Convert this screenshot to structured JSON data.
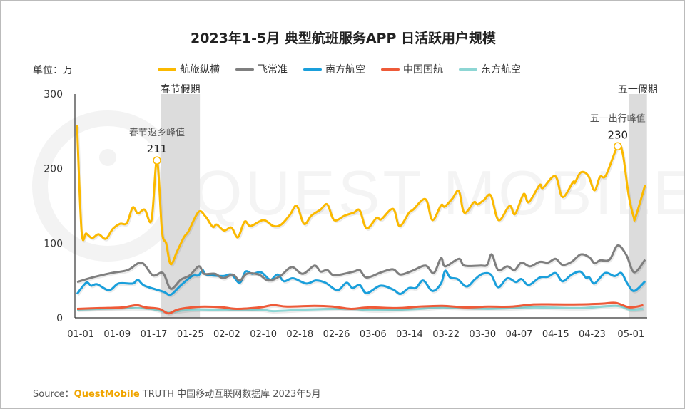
{
  "chart_data": {
    "type": "line",
    "title": "2023年1-5月 典型航班服务APP 日活跃用户规模",
    "unit_label": "单位：万",
    "ylim": [
      0,
      300
    ],
    "yticks": [
      0,
      100,
      200,
      300
    ],
    "xlim_days": [
      0,
      124.5
    ],
    "xticks": [
      {
        "label": "01-01",
        "day": 0.8
      },
      {
        "label": "01-09",
        "day": 8.8
      },
      {
        "label": "01-17",
        "day": 16.8
      },
      {
        "label": "01-25",
        "day": 24.8
      },
      {
        "label": "02-02",
        "day": 32.8
      },
      {
        "label": "02-10",
        "day": 40.8
      },
      {
        "label": "02-18",
        "day": 48.8
      },
      {
        "label": "02-26",
        "day": 56.8
      },
      {
        "label": "03-06",
        "day": 64.8
      },
      {
        "label": "03-14",
        "day": 72.8
      },
      {
        "label": "03-22",
        "day": 80.8
      },
      {
        "label": "03-30",
        "day": 88.8
      },
      {
        "label": "04-07",
        "day": 96.8
      },
      {
        "label": "04-15",
        "day": 104.8
      },
      {
        "label": "04-23",
        "day": 112.8
      },
      {
        "label": "05-01",
        "day": 121.3
      }
    ],
    "shaded": [
      {
        "label": "春节假期",
        "from": 18.3,
        "to": 26.9
      },
      {
        "label": "五一假期",
        "from": 120.8,
        "to": 124.8
      }
    ],
    "annotations": [
      {
        "series": 0,
        "day": 17.5,
        "value": 211,
        "text": "春节返乡峰值",
        "value_label": "211"
      },
      {
        "series": 0,
        "day": 118.4,
        "value": 230,
        "text": "五一出行峰值",
        "value_label": "230"
      }
    ],
    "series": [
      {
        "name": "航旅纵横",
        "color": "#fbb900",
        "points": [
          [
            0,
            258
          ],
          [
            1,
            115
          ],
          [
            2,
            113
          ],
          [
            3.3,
            107
          ],
          [
            4.7,
            112
          ],
          [
            6.3,
            106
          ],
          [
            7.8,
            119
          ],
          [
            9.4,
            126
          ],
          [
            10.9,
            127
          ],
          [
            12.2,
            148
          ],
          [
            13.3,
            140
          ],
          [
            14.8,
            145
          ],
          [
            16.3,
            131
          ],
          [
            17.5,
            211
          ],
          [
            18.6,
            116
          ],
          [
            19.5,
            100
          ],
          [
            20.5,
            72
          ],
          [
            21.9,
            89
          ],
          [
            23.4,
            108
          ],
          [
            24.4,
            116
          ],
          [
            26.6,
            142
          ],
          [
            28.1,
            136
          ],
          [
            29.7,
            122
          ],
          [
            30.6,
            125
          ],
          [
            32.2,
            117
          ],
          [
            33.8,
            121
          ],
          [
            35.2,
            108
          ],
          [
            36.7,
            129
          ],
          [
            38,
            123
          ],
          [
            40.8,
            131
          ],
          [
            43,
            123
          ],
          [
            44.7,
            125
          ],
          [
            46.6,
            138
          ],
          [
            48.1,
            150
          ],
          [
            49.7,
            126
          ],
          [
            51.3,
            137
          ],
          [
            53.3,
            145
          ],
          [
            54.8,
            152
          ],
          [
            56.3,
            131
          ],
          [
            58.6,
            137
          ],
          [
            60.6,
            141
          ],
          [
            61.9,
            144
          ],
          [
            63.4,
            120
          ],
          [
            65.6,
            134
          ],
          [
            66.6,
            132
          ],
          [
            69.2,
            146
          ],
          [
            70.6,
            123
          ],
          [
            72.7,
            141
          ],
          [
            73.6,
            145
          ],
          [
            76.3,
            159
          ],
          [
            77.8,
            131
          ],
          [
            79.7,
            151
          ],
          [
            80.5,
            149
          ],
          [
            82.2,
            160
          ],
          [
            83.6,
            170
          ],
          [
            84.8,
            141
          ],
          [
            86.9,
            155
          ],
          [
            87.7,
            152
          ],
          [
            89.1,
            158
          ],
          [
            90.6,
            164
          ],
          [
            92.3,
            131
          ],
          [
            94.7,
            150
          ],
          [
            95.9,
            139
          ],
          [
            97.8,
            166
          ],
          [
            98.9,
            155
          ],
          [
            101.3,
            178
          ],
          [
            102,
            174
          ],
          [
            104.7,
            190
          ],
          [
            106.3,
            162
          ],
          [
            108.6,
            182
          ],
          [
            109,
            181
          ],
          [
            110.3,
            195
          ],
          [
            111.9,
            191
          ],
          [
            113.3,
            171
          ],
          [
            114.5,
            189
          ],
          [
            115.8,
            191
          ],
          [
            118.4,
            230
          ],
          [
            119.5,
            220
          ],
          [
            120.8,
            164
          ],
          [
            121.9,
            135
          ],
          [
            122.3,
            135
          ],
          [
            124.4,
            178
          ]
        ]
      },
      {
        "name": "飞常准",
        "color": "#7f7f7f",
        "points": [
          [
            0,
            48
          ],
          [
            3.3,
            54
          ],
          [
            7.5,
            60
          ],
          [
            11.1,
            64
          ],
          [
            14.1,
            74
          ],
          [
            16.6,
            57
          ],
          [
            18.8,
            60
          ],
          [
            20.5,
            39
          ],
          [
            22.7,
            51
          ],
          [
            24.7,
            57
          ],
          [
            26.7,
            69
          ],
          [
            27.8,
            59
          ],
          [
            30.2,
            59
          ],
          [
            32,
            53
          ],
          [
            34.1,
            58
          ],
          [
            35.6,
            50
          ],
          [
            37.2,
            59
          ],
          [
            39.8,
            58
          ],
          [
            41.9,
            50
          ],
          [
            44.5,
            56
          ],
          [
            47,
            68
          ],
          [
            49.4,
            59
          ],
          [
            52,
            70
          ],
          [
            53.3,
            62
          ],
          [
            54.8,
            64
          ],
          [
            56.4,
            57
          ],
          [
            60.6,
            62
          ],
          [
            61.9,
            64
          ],
          [
            63.4,
            54
          ],
          [
            66.6,
            61
          ],
          [
            69.2,
            65
          ],
          [
            70.8,
            58
          ],
          [
            73.4,
            63
          ],
          [
            76.3,
            70
          ],
          [
            78.1,
            60
          ],
          [
            79.7,
            80
          ],
          [
            80.6,
            69
          ],
          [
            83.6,
            79
          ],
          [
            84.8,
            70
          ],
          [
            88.4,
            70
          ],
          [
            89.8,
            71
          ],
          [
            90.8,
            85
          ],
          [
            92.2,
            64
          ],
          [
            94.2,
            69
          ],
          [
            95.8,
            64
          ],
          [
            97.3,
            74
          ],
          [
            99.2,
            69
          ],
          [
            101.3,
            75
          ],
          [
            103.1,
            74
          ],
          [
            104.8,
            79
          ],
          [
            106.3,
            71
          ],
          [
            108.3,
            75
          ],
          [
            110.3,
            85
          ],
          [
            112.2,
            81
          ],
          [
            113.3,
            73
          ],
          [
            114.5,
            77
          ],
          [
            116.6,
            78
          ],
          [
            118.4,
            97
          ],
          [
            120.3,
            84
          ],
          [
            122,
            61
          ],
          [
            124.4,
            78
          ]
        ]
      },
      {
        "name": "南方航空",
        "color": "#1a9fdb",
        "points": [
          [
            0,
            32
          ],
          [
            2,
            47
          ],
          [
            3.1,
            43
          ],
          [
            4.4,
            45
          ],
          [
            7,
            37
          ],
          [
            9.1,
            46
          ],
          [
            12.2,
            46
          ],
          [
            13.3,
            51
          ],
          [
            14.8,
            43
          ],
          [
            18.9,
            35
          ],
          [
            20.5,
            31
          ],
          [
            22.8,
            44
          ],
          [
            25.2,
            56
          ],
          [
            26.6,
            57
          ],
          [
            27.5,
            64
          ],
          [
            28.3,
            58
          ],
          [
            32,
            56
          ],
          [
            33.8,
            58
          ],
          [
            35.6,
            47
          ],
          [
            36.9,
            62
          ],
          [
            38.4,
            59
          ],
          [
            40.3,
            61
          ],
          [
            42.3,
            51
          ],
          [
            43.9,
            58
          ],
          [
            45.3,
            49
          ],
          [
            47.3,
            53
          ],
          [
            50.2,
            46
          ],
          [
            52.3,
            50
          ],
          [
            54.4,
            47
          ],
          [
            57,
            37
          ],
          [
            59,
            47
          ],
          [
            60.3,
            40
          ],
          [
            61.9,
            44
          ],
          [
            63.4,
            33
          ],
          [
            66.4,
            43
          ],
          [
            69.2,
            38
          ],
          [
            70.8,
            32
          ],
          [
            72.7,
            40
          ],
          [
            74.2,
            40
          ],
          [
            75.8,
            50
          ],
          [
            77.8,
            36
          ],
          [
            79.7,
            46
          ],
          [
            80.6,
            63
          ],
          [
            81.7,
            54
          ],
          [
            83.3,
            52
          ],
          [
            85.3,
            42
          ],
          [
            87.2,
            52
          ],
          [
            88.8,
            59
          ],
          [
            90.6,
            58
          ],
          [
            92.2,
            41
          ],
          [
            94.2,
            53
          ],
          [
            96.1,
            48
          ],
          [
            97.3,
            52
          ],
          [
            98.9,
            44
          ],
          [
            101.3,
            54
          ],
          [
            103.1,
            55
          ],
          [
            104.8,
            60
          ],
          [
            106.3,
            49
          ],
          [
            108.3,
            58
          ],
          [
            110.2,
            62
          ],
          [
            111.4,
            54
          ],
          [
            112.2,
            54
          ],
          [
            113.3,
            46
          ],
          [
            115.6,
            60
          ],
          [
            117.7,
            56
          ],
          [
            119.2,
            60
          ],
          [
            120.5,
            46
          ],
          [
            122,
            36
          ],
          [
            124.4,
            49
          ]
        ]
      },
      {
        "name": "中国国航",
        "color": "#ee5a38",
        "points": [
          [
            0,
            12
          ],
          [
            5,
            13
          ],
          [
            10,
            14
          ],
          [
            13,
            17
          ],
          [
            15,
            14
          ],
          [
            18,
            12
          ],
          [
            20,
            6
          ],
          [
            22,
            11
          ],
          [
            25,
            14
          ],
          [
            28,
            15
          ],
          [
            32,
            14
          ],
          [
            35,
            12
          ],
          [
            40,
            14
          ],
          [
            43,
            17
          ],
          [
            46,
            15
          ],
          [
            52,
            16
          ],
          [
            56,
            15
          ],
          [
            60,
            12
          ],
          [
            64,
            14
          ],
          [
            70,
            13
          ],
          [
            75,
            15
          ],
          [
            80,
            16
          ],
          [
            85,
            14
          ],
          [
            90,
            15
          ],
          [
            95,
            15
          ],
          [
            100,
            18
          ],
          [
            105,
            18
          ],
          [
            110,
            18
          ],
          [
            115,
            19
          ],
          [
            118,
            20
          ],
          [
            121,
            14
          ],
          [
            124,
            17
          ]
        ]
      },
      {
        "name": "东方航空",
        "color": "#8dd6d4",
        "points": [
          [
            0,
            11
          ],
          [
            5,
            12
          ],
          [
            12,
            13
          ],
          [
            16,
            12
          ],
          [
            20,
            8
          ],
          [
            25,
            11
          ],
          [
            30,
            11
          ],
          [
            40,
            11
          ],
          [
            43,
            9
          ],
          [
            50,
            11
          ],
          [
            60,
            12
          ],
          [
            65,
            10
          ],
          [
            75,
            12
          ],
          [
            80,
            14
          ],
          [
            90,
            12
          ],
          [
            100,
            14
          ],
          [
            110,
            13
          ],
          [
            118,
            16
          ],
          [
            121,
            11
          ],
          [
            124,
            12
          ]
        ]
      }
    ]
  },
  "watermark": "QUEST MOBILE",
  "source": {
    "prefix": "Source：",
    "brand": "QuestMobile",
    "rest": " TRUTH 中国移动互联网数据库 2023年5月"
  }
}
